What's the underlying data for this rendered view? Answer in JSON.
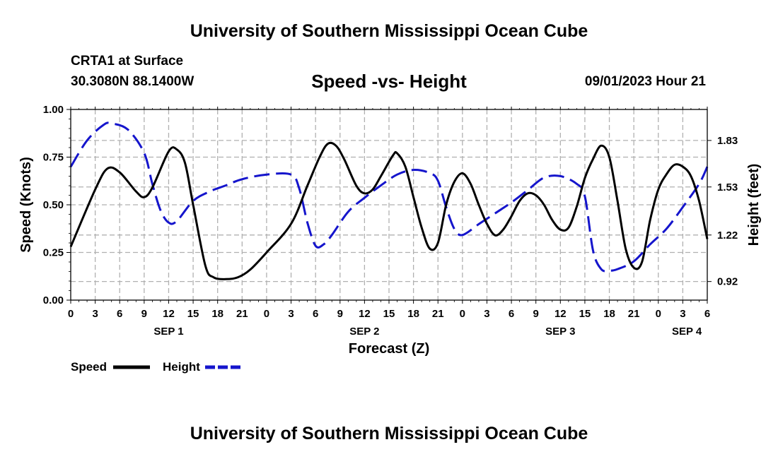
{
  "header": {
    "title": "University of Southern Mississippi Ocean Cube",
    "station": "CRTA1 at Surface",
    "coords": "30.3080N  88.1400W",
    "plot_title": "Speed -vs- Height",
    "valid_time": "09/01/2023 Hour 21"
  },
  "footer": {
    "title": "University of Southern Mississippi Ocean Cube"
  },
  "colors": {
    "speed": "#000000",
    "height": "#1515cc",
    "grid": "#b0b0b0"
  },
  "chart_data": {
    "type": "line",
    "title": "Speed -vs- Height",
    "xlabel": "Forecast (Z)",
    "ylabel": "Speed (Knots)",
    "y2label": "Height (feet)",
    "x_unit": "forecast hours from SEP 1 00Z",
    "xlim": [
      0,
      78
    ],
    "ylim": [
      0,
      1
    ],
    "y2lim": [
      0.8,
      2.03
    ],
    "x_ticks": [
      {
        "x": 0,
        "label": "0"
      },
      {
        "x": 3,
        "label": "3"
      },
      {
        "x": 6,
        "label": "6"
      },
      {
        "x": 9,
        "label": "9"
      },
      {
        "x": 12,
        "label": "12"
      },
      {
        "x": 15,
        "label": "15"
      },
      {
        "x": 18,
        "label": "18"
      },
      {
        "x": 21,
        "label": "21"
      },
      {
        "x": 24,
        "label": "0"
      },
      {
        "x": 27,
        "label": "3"
      },
      {
        "x": 30,
        "label": "6"
      },
      {
        "x": 33,
        "label": "9"
      },
      {
        "x": 36,
        "label": "12"
      },
      {
        "x": 39,
        "label": "15"
      },
      {
        "x": 42,
        "label": "18"
      },
      {
        "x": 45,
        "label": "21"
      },
      {
        "x": 48,
        "label": "0"
      },
      {
        "x": 51,
        "label": "3"
      },
      {
        "x": 54,
        "label": "6"
      },
      {
        "x": 57,
        "label": "9"
      },
      {
        "x": 60,
        "label": "12"
      },
      {
        "x": 63,
        "label": "15"
      },
      {
        "x": 66,
        "label": "18"
      },
      {
        "x": 69,
        "label": "21"
      },
      {
        "x": 72,
        "label": "0"
      },
      {
        "x": 75,
        "label": "3"
      },
      {
        "x": 78,
        "label": "6"
      }
    ],
    "date_labels": [
      {
        "x": 12,
        "label": "SEP 1"
      },
      {
        "x": 36,
        "label": "SEP 2"
      },
      {
        "x": 60,
        "label": "SEP 3"
      },
      {
        "x": 75.5,
        "label": "SEP 4"
      }
    ],
    "y_ticks": [
      {
        "value": 0,
        "label": "0.00"
      },
      {
        "value": 0.25,
        "label": "0.25"
      },
      {
        "value": 0.5,
        "label": "0.50"
      },
      {
        "value": 0.75,
        "label": "0.75"
      },
      {
        "value": 1,
        "label": "1.00"
      }
    ],
    "y2_ticks": [
      {
        "value": 0.92,
        "label": "0.92"
      },
      {
        "value": 1.22,
        "label": "1.22"
      },
      {
        "value": 1.53,
        "label": "1.53"
      },
      {
        "value": 1.83,
        "label": "1.83"
      }
    ],
    "series": [
      {
        "name": "Speed",
        "axis": "left",
        "style": "solid",
        "points": [
          [
            0,
            0.28
          ],
          [
            3,
            0.58
          ],
          [
            4.5,
            0.69
          ],
          [
            6,
            0.67
          ],
          [
            8,
            0.57
          ],
          [
            9,
            0.54
          ],
          [
            10,
            0.59
          ],
          [
            12,
            0.78
          ],
          [
            13,
            0.79
          ],
          [
            14,
            0.72
          ],
          [
            15,
            0.5
          ],
          [
            16.5,
            0.18
          ],
          [
            17.5,
            0.12
          ],
          [
            19,
            0.11
          ],
          [
            20.5,
            0.12
          ],
          [
            22,
            0.16
          ],
          [
            24,
            0.25
          ],
          [
            27,
            0.4
          ],
          [
            29,
            0.6
          ],
          [
            30.5,
            0.75
          ],
          [
            31.5,
            0.82
          ],
          [
            32.5,
            0.81
          ],
          [
            33.5,
            0.74
          ],
          [
            35,
            0.6
          ],
          [
            36,
            0.56
          ],
          [
            37,
            0.58
          ],
          [
            38,
            0.65
          ],
          [
            39.5,
            0.76
          ],
          [
            40,
            0.77
          ],
          [
            41,
            0.7
          ],
          [
            42,
            0.54
          ],
          [
            43,
            0.38
          ],
          [
            44,
            0.27
          ],
          [
            45,
            0.3
          ],
          [
            46,
            0.5
          ],
          [
            47,
            0.62
          ],
          [
            48,
            0.665
          ],
          [
            49,
            0.61
          ],
          [
            50,
            0.5
          ],
          [
            51,
            0.4
          ],
          [
            52,
            0.34
          ],
          [
            53,
            0.37
          ],
          [
            54,
            0.44
          ],
          [
            55,
            0.52
          ],
          [
            56,
            0.56
          ],
          [
            57,
            0.55
          ],
          [
            58,
            0.5
          ],
          [
            59,
            0.42
          ],
          [
            60,
            0.37
          ],
          [
            61,
            0.38
          ],
          [
            62,
            0.49
          ],
          [
            63,
            0.64
          ],
          [
            64,
            0.74
          ],
          [
            65,
            0.81
          ],
          [
            66,
            0.75
          ],
          [
            67,
            0.52
          ],
          [
            68,
            0.27
          ],
          [
            69,
            0.17
          ],
          [
            70,
            0.2
          ],
          [
            71,
            0.42
          ],
          [
            72,
            0.58
          ],
          [
            73,
            0.66
          ],
          [
            74,
            0.71
          ],
          [
            75,
            0.7
          ],
          [
            76,
            0.65
          ],
          [
            77,
            0.52
          ],
          [
            78,
            0.32
          ]
        ]
      },
      {
        "name": "Height",
        "axis": "right",
        "style": "dashed",
        "points": [
          [
            0,
            1.66
          ],
          [
            2,
            1.83
          ],
          [
            4,
            1.93
          ],
          [
            5,
            1.94
          ],
          [
            7,
            1.9
          ],
          [
            9,
            1.75
          ],
          [
            10,
            1.55
          ],
          [
            11,
            1.38
          ],
          [
            12,
            1.3
          ],
          [
            13,
            1.31
          ],
          [
            15,
            1.44
          ],
          [
            17,
            1.5
          ],
          [
            19,
            1.54
          ],
          [
            21,
            1.58
          ],
          [
            24,
            1.61
          ],
          [
            27,
            1.61
          ],
          [
            28,
            1.52
          ],
          [
            29,
            1.3
          ],
          [
            30,
            1.15
          ],
          [
            31,
            1.16
          ],
          [
            32,
            1.22
          ],
          [
            34,
            1.37
          ],
          [
            36,
            1.46
          ],
          [
            38,
            1.54
          ],
          [
            40,
            1.61
          ],
          [
            42,
            1.64
          ],
          [
            44,
            1.62
          ],
          [
            45,
            1.57
          ],
          [
            46,
            1.4
          ],
          [
            47,
            1.26
          ],
          [
            48,
            1.22
          ],
          [
            50,
            1.29
          ],
          [
            52,
            1.36
          ],
          [
            54,
            1.43
          ],
          [
            56,
            1.51
          ],
          [
            58,
            1.59
          ],
          [
            60,
            1.6
          ],
          [
            62,
            1.55
          ],
          [
            63,
            1.47
          ],
          [
            64,
            1.12
          ],
          [
            65,
            1.0
          ],
          [
            66,
            0.99
          ],
          [
            67,
            1.0
          ],
          [
            69,
            1.05
          ],
          [
            71,
            1.16
          ],
          [
            73,
            1.26
          ],
          [
            75,
            1.4
          ],
          [
            77,
            1.55
          ],
          [
            78,
            1.66
          ]
        ]
      }
    ],
    "legend": {
      "position": "bottom-left",
      "entries": [
        "Speed",
        "Height"
      ]
    }
  }
}
